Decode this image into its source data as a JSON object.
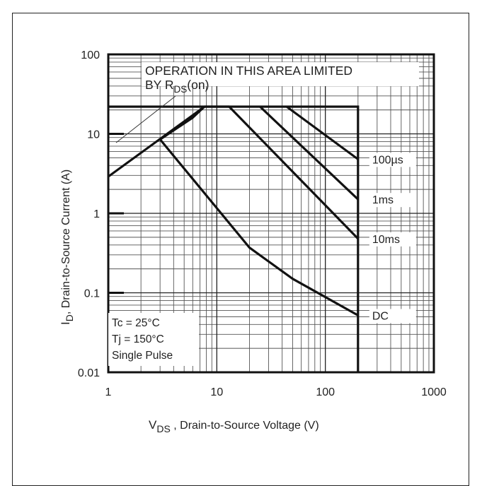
{
  "chart_data": {
    "type": "line",
    "xscale": "log",
    "yscale": "log",
    "xlim": [
      1,
      1000
    ],
    "ylim": [
      0.01,
      100
    ],
    "grid": true,
    "xlabel_main": "V",
    "xlabel_sub": "DS",
    "xlabel_rest": " , Drain-to-Source Voltage (V)",
    "ylabel_main": "I",
    "ylabel_sub": "D",
    "ylabel_rest": ", Drain-to-Source Current (A)",
    "xticks": [
      {
        "value": 1,
        "label": "1"
      },
      {
        "value": 10,
        "label": "10"
      },
      {
        "value": 100,
        "label": "100"
      },
      {
        "value": 1000,
        "label": "1000"
      }
    ],
    "yticks": [
      {
        "value": 0.01,
        "label": "0.01"
      },
      {
        "value": 0.1,
        "label": "0.1"
      },
      {
        "value": 1,
        "label": "1"
      },
      {
        "value": 10,
        "label": "10"
      },
      {
        "value": 100,
        "label": "100"
      }
    ],
    "annotation": {
      "line1": "OPERATION IN THIS AREA LIMITED",
      "line2_prefix": "BY R",
      "line2_sub": "DS",
      "line2_suffix": "(on)"
    },
    "conditions": [
      "Tc = 25°C",
      "Tj = 150°C",
      "Single Pulse"
    ],
    "limits": {
      "id_max": 22,
      "vds_max": 200
    },
    "rds_on_line": [
      [
        1,
        2.9
      ],
      [
        7.7,
        22
      ]
    ],
    "series": [
      {
        "name": "100µs",
        "points": [
          [
            44,
            22
          ],
          [
            200,
            4.8
          ]
        ]
      },
      {
        "name": "1ms",
        "points": [
          [
            25,
            22
          ],
          [
            200,
            1.5
          ]
        ]
      },
      {
        "name": "10ms",
        "points": [
          [
            6,
            16
          ],
          [
            7.7,
            22
          ],
          [
            13,
            22
          ],
          [
            200,
            0.48
          ]
        ]
      },
      {
        "name": "DC",
        "points": [
          [
            3,
            8.5
          ],
          [
            6,
            16
          ],
          [
            3,
            8.5
          ],
          [
            20,
            0.37
          ],
          [
            50,
            0.15
          ],
          [
            200,
            0.052
          ]
        ]
      }
    ]
  }
}
